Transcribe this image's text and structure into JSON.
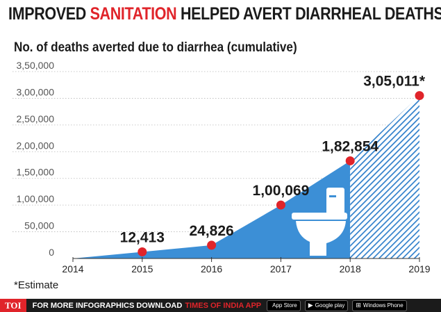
{
  "header": {
    "title_part1": "IMPROVED ",
    "title_highlight": "SANITATION",
    "title_part2": " HELPED AVERT DIARRHEAL DEATHS",
    "subtitle": "No. of deaths averted due to diarrhea (cumulative)"
  },
  "note": "*Estimate",
  "footer": {
    "logo": "TOI",
    "text": "FOR MORE  INFOGRAPHICS DOWNLOAD",
    "brand": "TIMES OF INDIA APP",
    "stores": [
      {
        "icon": "apple-icon",
        "glyph": "",
        "label": "App Store"
      },
      {
        "icon": "google-play-icon",
        "glyph": "▶",
        "label": "Google play"
      },
      {
        "icon": "windows-icon",
        "glyph": "⊞",
        "label": "Windows Phone"
      }
    ]
  },
  "colors": {
    "accent_red": "#e0242a",
    "area_blue": "#3c8fd6",
    "hatch_blue": "#2f7fcb",
    "marker_red": "#e0242a"
  },
  "chart_data": {
    "type": "area",
    "x": [
      2014,
      2015,
      2016,
      2017,
      2018,
      2019
    ],
    "values": [
      0,
      12413,
      24826,
      100069,
      182854,
      305011
    ],
    "point_labels": [
      "",
      "12,413",
      "24,826",
      "1,00,069",
      "1,82,854",
      "3,05,011*"
    ],
    "y_ticks": [
      0,
      50000,
      100000,
      150000,
      200000,
      250000,
      300000,
      350000
    ],
    "y_tick_labels": [
      "0",
      "50,000",
      "1,00,000",
      "1,50,000",
      "2,00,000",
      "2,50,000",
      "3,00,000",
      "3,50,000"
    ],
    "ylim": [
      0,
      350000
    ],
    "estimate_from": 2018,
    "grid": true,
    "illustration": "toilet-icon"
  }
}
